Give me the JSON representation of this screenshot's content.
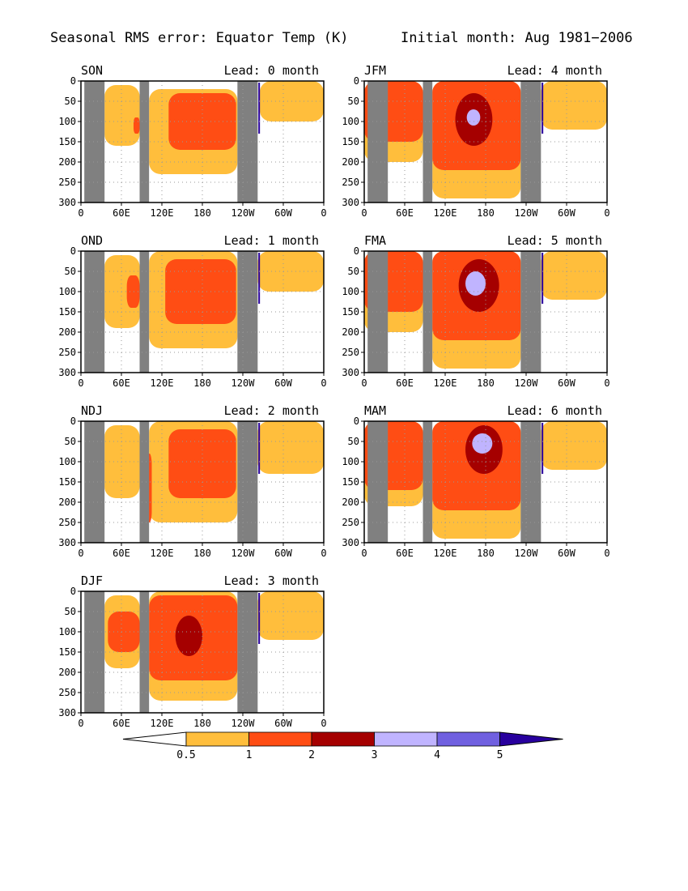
{
  "header": {
    "title": "Seasonal RMS error: Equator Temp (K)",
    "subtitle": "Initial month: Aug 1981−2006"
  },
  "chart_data": {
    "type": "heatmap",
    "x_axis": {
      "ticks": [
        "0",
        "60E",
        "120E",
        "180",
        "120W",
        "60W",
        "0"
      ],
      "range_deg": [
        0,
        360
      ]
    },
    "y_axis": {
      "ticks": [
        "0",
        "50",
        "100",
        "150",
        "200",
        "250",
        "300"
      ],
      "range": [
        300,
        0
      ],
      "inverted": true
    },
    "colorbar": {
      "levels": [
        "0.5",
        "1",
        "2",
        "3",
        "4",
        "5"
      ],
      "colors": [
        "#ffbe3c",
        "#ff4d14",
        "#a50000",
        "#c0b4ff",
        "#7060e0",
        "#28009e"
      ],
      "below_color": "#ffffff",
      "extends": "both"
    },
    "land_mask_color": "#808080",
    "land_mask_lon": [
      [
        5,
        35
      ],
      [
        87,
        101
      ],
      [
        232,
        262
      ]
    ],
    "panels": [
      {
        "season": "SON",
        "lead_label": "Lead: 0 month",
        "regions": [
          {
            "level": 1,
            "lon": [
              35,
              87
            ],
            "depth_top": [
              10,
              160
            ]
          },
          {
            "level": 1,
            "lon": [
              101,
              232
            ],
            "depth_top": [
              20,
              230
            ]
          },
          {
            "level": 1,
            "lon": [
              265,
              360
            ],
            "depth_top": [
              0,
              100
            ]
          },
          {
            "level": 2,
            "lon": [
              78,
              87
            ],
            "depth_top": [
              90,
              130
            ]
          },
          {
            "level": 2,
            "lon": [
              130,
              230
            ],
            "depth_top": [
              30,
              170
            ]
          }
        ]
      },
      {
        "season": "OND",
        "lead_label": "Lead: 1 month",
        "regions": [
          {
            "level": 1,
            "lon": [
              35,
              87
            ],
            "depth_top": [
              10,
              190
            ]
          },
          {
            "level": 1,
            "lon": [
              101,
              232
            ],
            "depth_top": [
              0,
              240
            ]
          },
          {
            "level": 1,
            "lon": [
              262,
              360
            ],
            "depth_top": [
              0,
              100
            ]
          },
          {
            "level": 2,
            "lon": [
              68,
              87
            ],
            "depth_top": [
              60,
              140
            ]
          },
          {
            "level": 2,
            "lon": [
              125,
              230
            ],
            "depth_top": [
              20,
              180
            ]
          }
        ]
      },
      {
        "season": "NDJ",
        "lead_label": "Lead: 2 month",
        "regions": [
          {
            "level": 1,
            "lon": [
              35,
              87
            ],
            "depth_top": [
              10,
              190
            ]
          },
          {
            "level": 1,
            "lon": [
              101,
              232
            ],
            "depth_top": [
              0,
              250
            ]
          },
          {
            "level": 1,
            "lon": [
              262,
              360
            ],
            "depth_top": [
              0,
              130
            ]
          },
          {
            "level": 2,
            "lon": [
              95,
              105
            ],
            "depth_top": [
              80,
              250
            ]
          },
          {
            "level": 2,
            "lon": [
              130,
              230
            ],
            "depth_top": [
              20,
              190
            ]
          }
        ]
      },
      {
        "season": "DJF",
        "lead_label": "Lead: 3 month",
        "regions": [
          {
            "level": 1,
            "lon": [
              35,
              87
            ],
            "depth_top": [
              10,
              190
            ]
          },
          {
            "level": 1,
            "lon": [
              101,
              232
            ],
            "depth_top": [
              0,
              270
            ]
          },
          {
            "level": 1,
            "lon": [
              262,
              360
            ],
            "depth_top": [
              0,
              120
            ]
          },
          {
            "level": 2,
            "lon": [
              40,
              87
            ],
            "depth_top": [
              50,
              150
            ]
          },
          {
            "level": 2,
            "lon": [
              101,
              232
            ],
            "depth_top": [
              10,
              220
            ]
          },
          {
            "level": 3,
            "lon": [
              140,
              180
            ],
            "depth_top": [
              60,
              160
            ]
          }
        ]
      },
      {
        "season": "JFM",
        "lead_label": "Lead: 4 month",
        "regions": [
          {
            "level": 1,
            "lon": [
              0,
              87
            ],
            "depth_top": [
              0,
              200
            ]
          },
          {
            "level": 1,
            "lon": [
              101,
              232
            ],
            "depth_top": [
              0,
              290
            ]
          },
          {
            "level": 1,
            "lon": [
              262,
              360
            ],
            "depth_top": [
              0,
              120
            ]
          },
          {
            "level": 2,
            "lon": [
              0,
              87
            ],
            "depth_top": [
              0,
              150
            ]
          },
          {
            "level": 2,
            "lon": [
              101,
              232
            ],
            "depth_top": [
              0,
              220
            ]
          },
          {
            "level": 3,
            "lon": [
              135,
              190
            ],
            "depth_top": [
              30,
              160
            ]
          },
          {
            "level": 4,
            "lon": [
              152,
              172
            ],
            "depth_top": [
              70,
              110
            ]
          }
        ]
      },
      {
        "season": "FMA",
        "lead_label": "Lead: 5 month",
        "regions": [
          {
            "level": 1,
            "lon": [
              0,
              87
            ],
            "depth_top": [
              0,
              200
            ]
          },
          {
            "level": 1,
            "lon": [
              101,
              232
            ],
            "depth_top": [
              0,
              290
            ]
          },
          {
            "level": 1,
            "lon": [
              262,
              360
            ],
            "depth_top": [
              0,
              120
            ]
          },
          {
            "level": 2,
            "lon": [
              0,
              87
            ],
            "depth_top": [
              0,
              150
            ]
          },
          {
            "level": 2,
            "lon": [
              101,
              232
            ],
            "depth_top": [
              0,
              220
            ]
          },
          {
            "level": 3,
            "lon": [
              140,
              200
            ],
            "depth_top": [
              20,
              150
            ]
          },
          {
            "level": 4,
            "lon": [
              150,
              180
            ],
            "depth_top": [
              50,
              110
            ]
          }
        ]
      },
      {
        "season": "MAM",
        "lead_label": "Lead: 6 month",
        "regions": [
          {
            "level": 1,
            "lon": [
              0,
              87
            ],
            "depth_top": [
              0,
              210
            ]
          },
          {
            "level": 1,
            "lon": [
              101,
              232
            ],
            "depth_top": [
              0,
              290
            ]
          },
          {
            "level": 1,
            "lon": [
              262,
              360
            ],
            "depth_top": [
              0,
              120
            ]
          },
          {
            "level": 2,
            "lon": [
              0,
              87
            ],
            "depth_top": [
              0,
              170
            ]
          },
          {
            "level": 2,
            "lon": [
              101,
              232
            ],
            "depth_top": [
              0,
              220
            ]
          },
          {
            "level": 3,
            "lon": [
              150,
              205
            ],
            "depth_top": [
              10,
              130
            ]
          },
          {
            "level": 4,
            "lon": [
              160,
              190
            ],
            "depth_top": [
              30,
              80
            ]
          }
        ]
      }
    ]
  }
}
